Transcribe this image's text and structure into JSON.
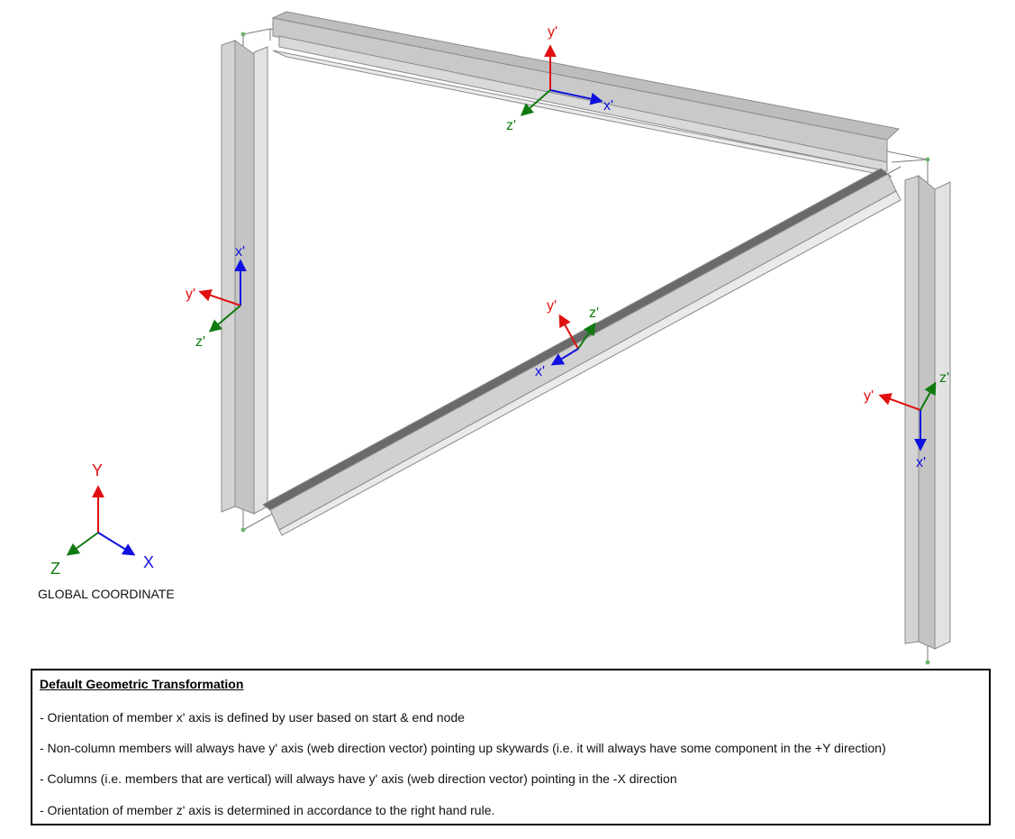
{
  "colors": {
    "x_axis": "#1010e0",
    "y_axis": "#e01010",
    "z_axis": "#107a10",
    "steel": "#cfcfcf"
  },
  "global_axes": {
    "x": "X",
    "y": "Y",
    "z": "Z",
    "caption": "GLOBAL COORDINATE"
  },
  "members": [
    {
      "id": "top-beam",
      "x_label": "x'",
      "y_label": "y'",
      "z_label": "z'"
    },
    {
      "id": "left-column",
      "x_label": "x'",
      "y_label": "y'",
      "z_label": "z'"
    },
    {
      "id": "diagonal-brace",
      "x_label": "x'",
      "y_label": "y'",
      "z_label": "z'"
    },
    {
      "id": "right-column",
      "x_label": "x'",
      "y_label": "y'",
      "z_label": "z'"
    }
  ],
  "notes": {
    "title": "Default Geometric Transformation",
    "lines": [
      "- Orientation of member x' axis is defined by user based on start & end node",
      "- Non-column members will always have y' axis (web direction vector) pointing up skywards (i.e. it will always have some component in the +Y direction)",
      "- Columns (i.e. members that are vertical) will always have y' axis (web direction vector) pointing in the -X direction",
      "- Orientation of member z' axis is determined in accordance to the right hand rule."
    ]
  }
}
